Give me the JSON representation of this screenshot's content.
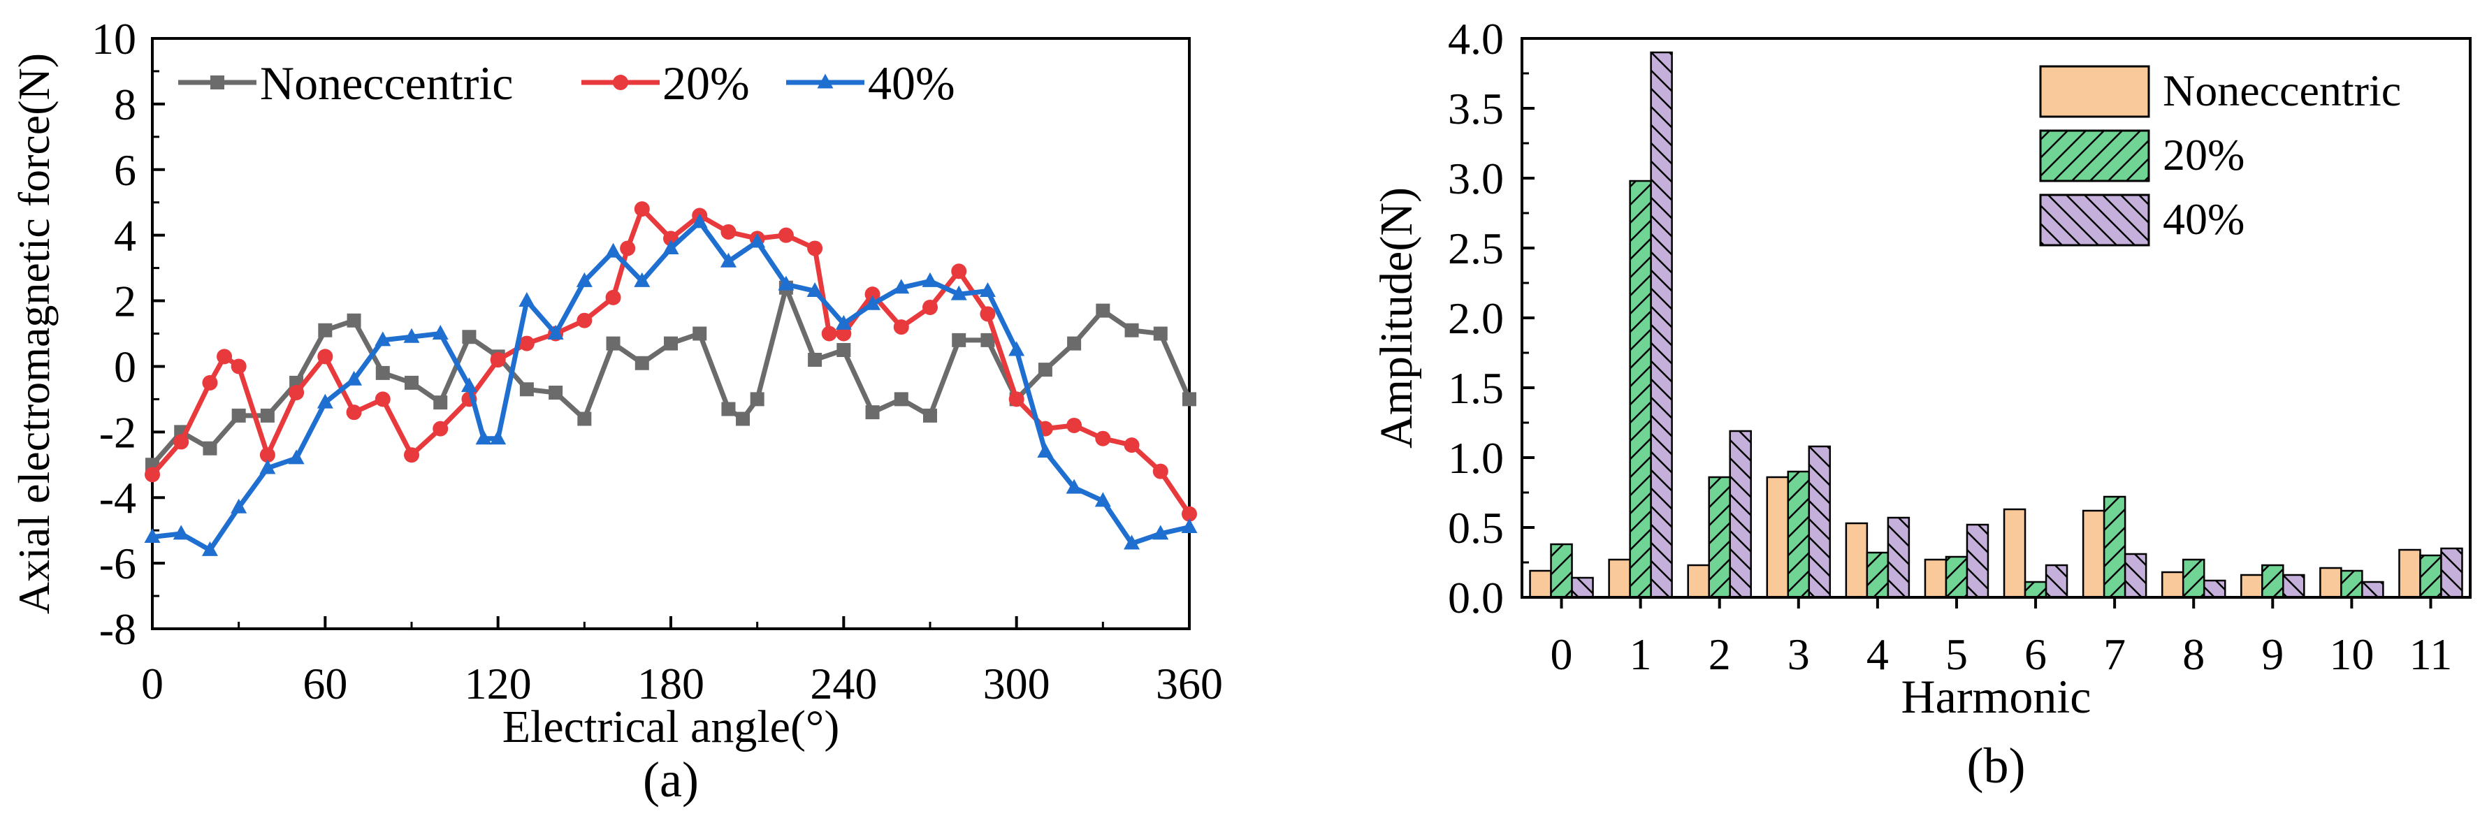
{
  "chart_data": [
    {
      "type": "line",
      "panel_label": "(a)",
      "xlabel": "Electrical angle(°)",
      "ylabel": "Axial electromagnetic force(N)",
      "xlim": [
        0,
        360
      ],
      "ylim": [
        -8,
        10
      ],
      "xticks": [
        0,
        60,
        120,
        180,
        240,
        300,
        360
      ],
      "yticks": [
        -8,
        -6,
        -4,
        -2,
        0,
        2,
        4,
        6,
        8,
        10
      ],
      "grid": false,
      "legend_position": "top",
      "series": [
        {
          "name": "Noneccentric",
          "color": "#6b6b6b",
          "marker": "square",
          "x": [
            0,
            10,
            20,
            30,
            40,
            50,
            60,
            70,
            80,
            90,
            100,
            110,
            120,
            130,
            140,
            150,
            160,
            170,
            180,
            190,
            200,
            205,
            210,
            220,
            230,
            240,
            250,
            260,
            270,
            280,
            290,
            300,
            310,
            320,
            330,
            340,
            350,
            360
          ],
          "y": [
            -3.0,
            -2.0,
            -2.5,
            -1.5,
            -1.5,
            -0.5,
            1.1,
            1.4,
            -0.2,
            -0.5,
            -1.1,
            0.9,
            0.3,
            -0.7,
            -0.8,
            -1.6,
            0.7,
            0.1,
            0.7,
            1.0,
            -1.3,
            -1.6,
            -1.0,
            2.4,
            0.2,
            0.5,
            -1.4,
            -1.0,
            -1.5,
            0.8,
            0.8,
            -1.0,
            -0.1,
            0.7,
            1.7,
            1.1,
            1.0,
            -1.0
          ]
        },
        {
          "name": "20%",
          "color": "#e8393c",
          "marker": "circle",
          "x": [
            0,
            10,
            20,
            25,
            30,
            40,
            50,
            60,
            70,
            80,
            90,
            100,
            110,
            120,
            130,
            140,
            150,
            160,
            165,
            170,
            180,
            190,
            200,
            210,
            220,
            230,
            235,
            240,
            250,
            260,
            270,
            280,
            290,
            300,
            310,
            320,
            330,
            340,
            350,
            360
          ],
          "y": [
            -3.3,
            -2.3,
            -0.5,
            0.3,
            0.0,
            -2.7,
            -0.8,
            0.3,
            -1.4,
            -1.0,
            -2.7,
            -1.9,
            -1.0,
            0.2,
            0.7,
            1.0,
            1.4,
            2.1,
            3.6,
            4.8,
            3.9,
            4.6,
            4.1,
            3.9,
            4.0,
            3.6,
            1.0,
            1.0,
            2.2,
            1.2,
            1.8,
            2.9,
            1.6,
            -1.0,
            -1.9,
            -1.8,
            -2.2,
            -2.4,
            -3.2,
            -4.5
          ]
        },
        {
          "name": "40%",
          "color": "#1f6fd1",
          "marker": "triangle",
          "x": [
            0,
            10,
            20,
            30,
            40,
            50,
            60,
            70,
            80,
            90,
            100,
            110,
            115,
            120,
            130,
            140,
            150,
            160,
            170,
            180,
            190,
            200,
            210,
            220,
            230,
            240,
            250,
            260,
            270,
            280,
            290,
            300,
            310,
            320,
            330,
            340,
            350,
            360
          ],
          "y": [
            -5.2,
            -5.1,
            -5.6,
            -4.3,
            -3.1,
            -2.8,
            -1.1,
            -0.4,
            0.8,
            0.9,
            1.0,
            -0.6,
            -2.2,
            -2.2,
            2.0,
            1.0,
            2.6,
            3.5,
            2.6,
            3.6,
            4.4,
            3.2,
            3.8,
            2.5,
            2.3,
            1.3,
            1.9,
            2.4,
            2.6,
            2.2,
            2.3,
            0.5,
            -2.6,
            -3.7,
            -4.1,
            -5.4,
            -5.1,
            -4.9
          ]
        }
      ]
    },
    {
      "type": "bar",
      "panel_label": "(b)",
      "xlabel": "Harmonic",
      "ylabel": "Amplitude(N)",
      "categories": [
        "0",
        "1",
        "2",
        "3",
        "4",
        "5",
        "6",
        "7",
        "8",
        "9",
        "10",
        "11"
      ],
      "ylim": [
        0,
        4.0
      ],
      "yticks": [
        "0.0",
        "0.5",
        "1.0",
        "1.5",
        "2.0",
        "2.5",
        "3.0",
        "3.5",
        "4.0"
      ],
      "grid": false,
      "legend_position": "top-right",
      "series": [
        {
          "name": "Noneccentric",
          "color": "#f9c99a",
          "hatch": "none",
          "values": [
            0.19,
            0.27,
            0.23,
            0.86,
            0.53,
            0.27,
            0.63,
            0.62,
            0.18,
            0.16,
            0.21,
            0.34
          ]
        },
        {
          "name": "20%",
          "color": "#6fd494",
          "hatch": "forward",
          "values": [
            0.38,
            2.98,
            0.86,
            0.9,
            0.32,
            0.29,
            0.11,
            0.72,
            0.27,
            0.23,
            0.19,
            0.3
          ]
        },
        {
          "name": "40%",
          "color": "#c4b0da",
          "hatch": "backward",
          "values": [
            0.14,
            3.9,
            1.19,
            1.08,
            0.57,
            0.52,
            0.23,
            0.31,
            0.12,
            0.16,
            0.11,
            0.35
          ]
        }
      ]
    }
  ]
}
